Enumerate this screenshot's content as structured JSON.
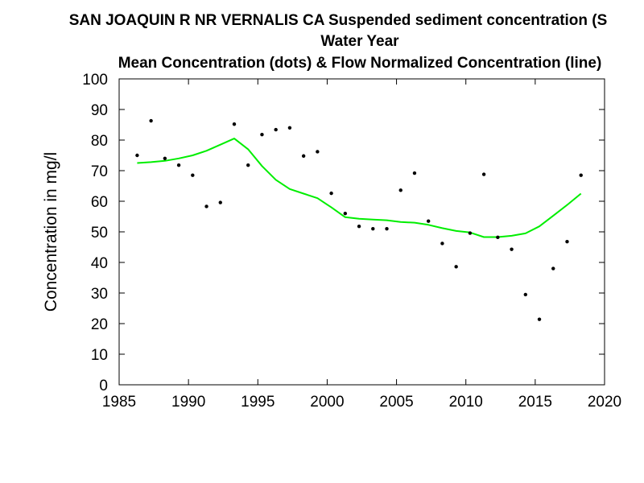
{
  "chart_data": {
    "type": "scatter",
    "title": "SAN JOAQUIN R NR VERNALIS CA   Suspended sediment concentration (S",
    "subtitle_1": "Water Year",
    "subtitle_2": "Mean Concentration (dots) & Flow Normalized Concentration (line)",
    "xlabel": "",
    "ylabel": "Concentration in mg/l",
    "xlim": [
      1985,
      2020
    ],
    "ylim": [
      0,
      100
    ],
    "x_ticks": [
      1985,
      1990,
      1995,
      2000,
      2005,
      2010,
      2015,
      2020
    ],
    "y_ticks": [
      0,
      10,
      20,
      30,
      40,
      50,
      60,
      70,
      80,
      90,
      100
    ],
    "grid": false,
    "series": [
      {
        "style": "dots",
        "color": "#000000",
        "x": [
          1986.3,
          1987.3,
          1988.3,
          1989.3,
          1990.3,
          1991.3,
          1992.3,
          1993.3,
          1994.3,
          1995.3,
          1996.3,
          1997.3,
          1998.3,
          1999.3,
          2000.3,
          2001.3,
          2002.3,
          2003.3,
          2004.3,
          2005.3,
          2006.3,
          2007.3,
          2008.3,
          2009.3,
          2010.3,
          2011.3,
          2012.3,
          2013.3,
          2014.3,
          2015.3,
          2016.3,
          2017.3,
          2018.3
        ],
        "y": [
          75,
          86.3,
          74,
          71.8,
          68.5,
          58.3,
          59.6,
          85.2,
          71.8,
          81.8,
          83.4,
          84,
          74.8,
          76.2,
          62.6,
          56,
          51.8,
          51,
          51,
          63.6,
          69.2,
          53.5,
          46.2,
          38.6,
          49.6,
          68.8,
          48.2,
          44.3,
          29.5,
          21.4,
          38,
          46.8,
          68.5
        ]
      },
      {
        "style": "line",
        "color": "#00ee00",
        "x": [
          1986.3,
          1987.3,
          1988.3,
          1989.3,
          1990.3,
          1991.3,
          1992.3,
          1993.3,
          1994.3,
          1995.3,
          1996.3,
          1997.3,
          1998.3,
          1999.3,
          2000.3,
          2001.3,
          2002.3,
          2003.3,
          2004.3,
          2005.3,
          2006.3,
          2007.3,
          2008.3,
          2009.3,
          2010.3,
          2011.3,
          2012.3,
          2013.3,
          2014.3,
          2015.3,
          2016.3,
          2017.3,
          2018.3
        ],
        "y": [
          72.5,
          72.8,
          73.2,
          74,
          75,
          76.5,
          78.5,
          80.5,
          77,
          71.5,
          67,
          64,
          62.5,
          61,
          58,
          54.8,
          54.3,
          54,
          53.8,
          53.2,
          53,
          52.3,
          51.2,
          50.3,
          49.8,
          48.3,
          48.3,
          48.7,
          49.5,
          51.8,
          55.3,
          58.8,
          62.5
        ]
      }
    ]
  }
}
